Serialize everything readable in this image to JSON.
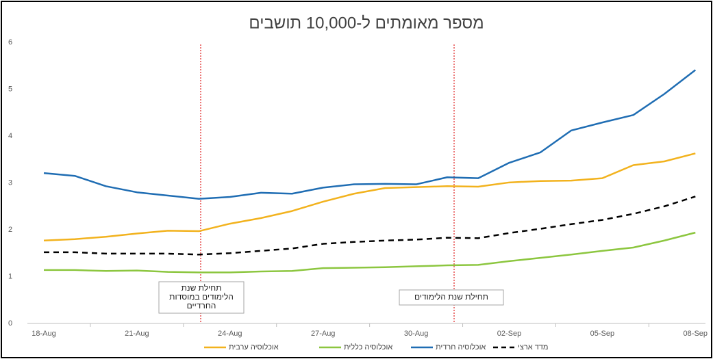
{
  "chart_data": {
    "type": "line",
    "title": "מספר מאומתים ל-10,000 תושבים",
    "categories": [
      "18-Aug",
      null,
      null,
      "21-Aug",
      null,
      null,
      "24-Aug",
      null,
      null,
      "27-Aug",
      null,
      null,
      "30-Aug",
      null,
      null,
      "02-Sep",
      null,
      null,
      "05-Sep",
      null,
      null,
      "08-Sep"
    ],
    "series": [
      {
        "name": "אוכלוסיה ערבית",
        "color": "#f2b21d",
        "dashed": false,
        "values": [
          1.77,
          1.8,
          1.85,
          1.92,
          1.98,
          1.97,
          2.13,
          2.25,
          2.4,
          2.6,
          2.77,
          2.89,
          2.91,
          2.93,
          2.92,
          3.01,
          3.04,
          3.05,
          3.1,
          3.38,
          3.46,
          3.63
        ]
      },
      {
        "name": "אוכלוסיה כללית",
        "color": "#8cc63f",
        "dashed": false,
        "values": [
          1.14,
          1.14,
          1.12,
          1.13,
          1.1,
          1.09,
          1.09,
          1.11,
          1.12,
          1.18,
          1.19,
          1.2,
          1.22,
          1.24,
          1.25,
          1.33,
          1.4,
          1.47,
          1.55,
          1.62,
          1.77,
          1.94
        ]
      },
      {
        "name": "אוכלוסיה חרדית",
        "color": "#1f6db3",
        "dashed": false,
        "values": [
          3.21,
          3.15,
          2.93,
          2.8,
          2.73,
          2.66,
          2.7,
          2.79,
          2.77,
          2.9,
          2.97,
          2.98,
          2.97,
          3.12,
          3.1,
          3.43,
          3.65,
          4.12,
          4.29,
          4.45,
          4.9,
          5.41
        ]
      },
      {
        "name": "מדד ארצי",
        "color": "#000000",
        "dashed": true,
        "values": [
          1.52,
          1.52,
          1.49,
          1.49,
          1.49,
          1.47,
          1.5,
          1.55,
          1.6,
          1.7,
          1.74,
          1.77,
          1.79,
          1.83,
          1.82,
          1.93,
          2.02,
          2.12,
          2.21,
          2.34,
          2.5,
          2.71
        ]
      }
    ],
    "ylim": [
      0,
      6
    ],
    "yticks": [
      0,
      1,
      2,
      3,
      4,
      5,
      6
    ],
    "grid": false,
    "legend": "bottom",
    "annotations": [
      {
        "lines": [
          "תחילת שנת",
          "הלימודים במוסדות",
          "החרדיים"
        ],
        "color": "#e02020"
      },
      {
        "lines": [
          "תחילת שנת הלימודים"
        ],
        "color": "#e02020"
      }
    ]
  }
}
